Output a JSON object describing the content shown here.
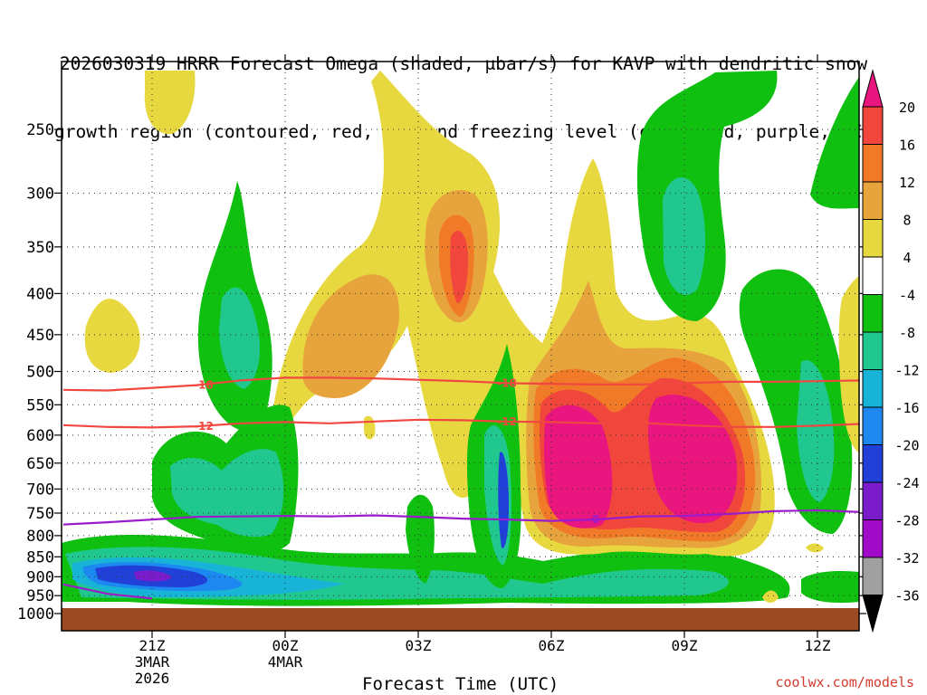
{
  "title": {
    "line1": "2026030319 HRRR Forecast Omega (shaded, μbar/s) for KAVP with dendritic snow",
    "line2": "growth region (contoured, red, ºC) and freezing level (contoured, purple, ºC)"
  },
  "credit": "coolwx.com/models",
  "chart_data": {
    "type": "heatmap",
    "title": "2026030319 HRRR Forecast Omega (shaded, μbar/s) for KAVP with dendritic snow growth region (contoured, red, ºC) and freezing level (contoured, purple, ºC)",
    "xlabel": "Forecast Time (UTC)",
    "ylabel": "",
    "x_axis_unit": "forecast hour",
    "xlim": [
      19,
      13
    ],
    "x_ticks": [
      {
        "label": "21Z",
        "sub": [
          "3MAR",
          "2026"
        ]
      },
      {
        "label": "00Z",
        "sub": [
          "4MAR"
        ]
      },
      {
        "label": "03Z",
        "sub": []
      },
      {
        "label": "06Z",
        "sub": []
      },
      {
        "label": "09Z",
        "sub": []
      },
      {
        "label": "12Z",
        "sub": []
      }
    ],
    "y_ticks": [
      250,
      300,
      350,
      400,
      450,
      500,
      550,
      600,
      650,
      700,
      750,
      800,
      850,
      900,
      950,
      1000
    ],
    "y_range_hpa": [
      200,
      1000
    ],
    "grid": true,
    "colorbar": {
      "labels": [
        "20",
        "16",
        "12",
        "8",
        "4",
        "-4",
        "-8",
        "-12",
        "-16",
        "-20",
        "-24",
        "-28",
        "-32",
        "-36"
      ],
      "colors": [
        "#e8167e",
        "#f0463c",
        "#f07a28",
        "#e8a43c",
        "#e8d840",
        "#ffffff",
        "#10c010",
        "#20c890",
        "#18b4d8",
        "#1c88f0",
        "#2040d8",
        "#7a1ccc",
        "#a00ac8",
        "#a0a0a0",
        "#000000"
      ]
    },
    "contours": [
      {
        "value": -18,
        "color": "#f04840",
        "label": "-18",
        "points": [
          [
            19,
            527
          ],
          [
            20,
            528
          ],
          [
            21,
            524
          ],
          [
            22,
            520
          ],
          [
            23,
            513
          ],
          [
            24,
            509
          ],
          [
            25,
            509
          ],
          [
            26,
            510
          ],
          [
            27,
            512
          ],
          [
            28,
            514
          ],
          [
            29,
            517
          ],
          [
            30,
            518
          ],
          [
            31,
            519
          ],
          [
            32,
            519
          ],
          [
            33,
            517
          ],
          [
            34,
            515
          ],
          [
            35,
            515
          ],
          [
            36,
            514
          ],
          [
            37,
            513
          ]
        ]
      },
      {
        "value": -12,
        "color": "#f04840",
        "label": "-12",
        "points": [
          [
            19,
            583
          ],
          [
            20,
            586
          ],
          [
            21,
            587
          ],
          [
            22,
            585
          ],
          [
            23,
            580
          ],
          [
            24,
            578
          ],
          [
            25,
            580
          ],
          [
            26,
            577
          ],
          [
            27,
            574
          ],
          [
            28,
            575
          ],
          [
            29,
            577
          ],
          [
            30,
            578
          ],
          [
            31,
            580
          ],
          [
            32,
            579
          ],
          [
            33,
            583
          ],
          [
            34,
            586
          ],
          [
            35,
            586
          ],
          [
            36,
            584
          ],
          [
            37,
            581
          ]
        ]
      },
      {
        "value": 0,
        "color": "#9a1ccc",
        "label": "0",
        "points": [
          [
            19,
            775
          ],
          [
            20,
            770
          ],
          [
            21,
            764
          ],
          [
            22,
            758
          ],
          [
            23,
            757
          ],
          [
            24,
            756
          ],
          [
            25,
            757
          ],
          [
            26,
            755
          ],
          [
            27,
            758
          ],
          [
            28,
            762
          ],
          [
            29,
            764
          ],
          [
            30,
            767
          ],
          [
            31,
            764
          ],
          [
            32,
            757
          ],
          [
            33,
            756
          ],
          [
            34,
            752
          ],
          [
            35,
            746
          ],
          [
            36,
            744
          ],
          [
            37,
            748
          ]
        ]
      },
      {
        "value": 0,
        "color": "#9a1ccc",
        "label": "",
        "points": [
          [
            19,
            920
          ],
          [
            20,
            945
          ],
          [
            21,
            958
          ]
        ]
      }
    ],
    "regions": [
      {
        "value": -12,
        "color": "#20c890",
        "desc": "low-level band",
        "p_top": 855,
        "p_bottom": 965,
        "x_start": 19,
        "x_end": 37
      },
      {
        "value": -20,
        "color": "#2040d8",
        "desc": "low-level max near 21Z",
        "p_top": 895,
        "p_bottom": 955,
        "x_start": 20,
        "x_end": 24
      },
      {
        "value": 20,
        "color": "#e8167e",
        "desc": "max near 06Z",
        "p_top": 480,
        "p_bottom": 720,
        "x_start": 30,
        "x_end": 32
      },
      {
        "value": 20,
        "color": "#e8167e",
        "desc": "max near 09Z",
        "p_top": 470,
        "p_bottom": 740,
        "x_start": 33,
        "x_end": 35
      },
      {
        "value": 16,
        "color": "#f0463c",
        "desc": "upper max near 03Z",
        "p_top": 320,
        "p_bottom": 410,
        "x_start": 28,
        "x_end": 29
      },
      {
        "value": -16,
        "color": "#18b4d8",
        "desc": "column near 05Z",
        "p_top": 560,
        "p_bottom": 820,
        "x_start": 29,
        "x_end": 30
      }
    ]
  }
}
